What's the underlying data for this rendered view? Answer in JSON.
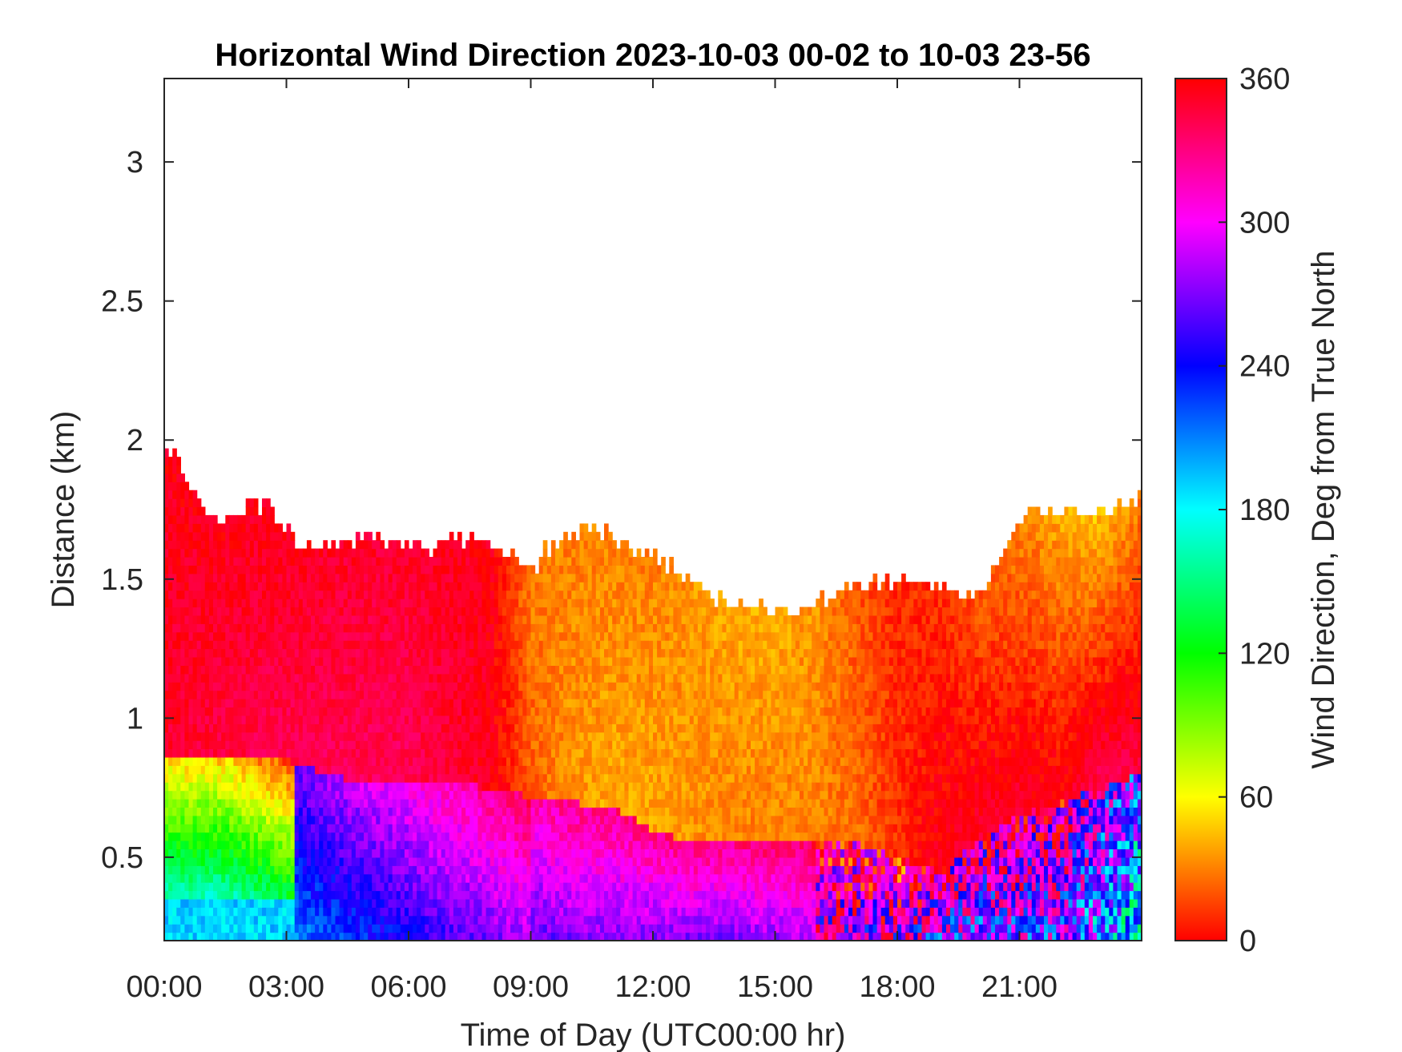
{
  "chart_data": {
    "type": "heatmap",
    "title": "Horizontal Wind Direction 2023-10-03 00-02 to 10-03 23-56",
    "xlabel": "Time of Day (UTC00:00 hr)",
    "ylabel": "Distance (km)",
    "colorbar_label": "Wind Direction, Deg from True North",
    "x_unit": "hours",
    "xlim": [
      0,
      24
    ],
    "ylim": [
      0.2,
      3.3
    ],
    "x_ticks": [
      {
        "value": 0,
        "label": "00:00"
      },
      {
        "value": 3,
        "label": "03:00"
      },
      {
        "value": 6,
        "label": "06:00"
      },
      {
        "value": 9,
        "label": "09:00"
      },
      {
        "value": 12,
        "label": "12:00"
      },
      {
        "value": 15,
        "label": "15:00"
      },
      {
        "value": 18,
        "label": "18:00"
      },
      {
        "value": 21,
        "label": "21:00"
      }
    ],
    "y_ticks": [
      {
        "value": 0.5,
        "label": "0.5"
      },
      {
        "value": 1,
        "label": "1"
      },
      {
        "value": 1.5,
        "label": "1.5"
      },
      {
        "value": 2,
        "label": "2"
      },
      {
        "value": 2.5,
        "label": "2.5"
      },
      {
        "value": 3,
        "label": "3"
      }
    ],
    "colorbar": {
      "min": 0,
      "max": 360,
      "ticks": [
        {
          "value": 0,
          "label": "0"
        },
        {
          "value": 60,
          "label": "60"
        },
        {
          "value": 120,
          "label": "120"
        },
        {
          "value": 180,
          "label": "180"
        },
        {
          "value": 240,
          "label": "240"
        },
        {
          "value": 300,
          "label": "300"
        },
        {
          "value": 360,
          "label": "360"
        }
      ],
      "colormap": "hsv"
    },
    "data_top_km": {
      "t": [
        0,
        0.5,
        1.2,
        1.8,
        2.5,
        3.2,
        3.5,
        5.0,
        6.5,
        7.5,
        8.5,
        9.0,
        9.5,
        10.5,
        11.5,
        12.5,
        13.5,
        14.5,
        15.5,
        16.5,
        17.5,
        19.0,
        20.0,
        21.0,
        22.0,
        23.0,
        24.0
      ],
      "km": [
        1.95,
        1.88,
        1.68,
        1.74,
        1.75,
        1.62,
        1.6,
        1.63,
        1.6,
        1.64,
        1.58,
        1.5,
        1.62,
        1.68,
        1.6,
        1.52,
        1.42,
        1.38,
        1.35,
        1.45,
        1.48,
        1.45,
        1.42,
        1.72,
        1.73,
        1.72,
        1.78
      ]
    },
    "layers": [
      {
        "t": [
          0,
          3,
          4.5,
          6,
          8,
          9,
          10,
          11,
          12,
          13,
          14,
          15,
          16,
          17,
          18,
          19,
          20,
          21,
          22,
          23,
          24
        ],
        "km_lower": [
          0.85,
          0.85,
          0.78,
          0.78,
          0.75,
          0.72,
          0.7,
          0.68,
          0.6,
          0.55,
          0.55,
          0.55,
          0.55,
          0.55,
          0.5,
          0.45,
          0.55,
          0.65,
          0.7,
          0.75,
          0.8
        ],
        "deg": [
          5,
          5,
          5,
          5,
          5,
          5,
          5,
          5,
          5,
          5,
          5,
          5,
          5,
          5,
          5,
          5,
          5,
          5,
          5,
          5,
          5
        ]
      },
      {
        "t": [
          0,
          3,
          4.5,
          6,
          8,
          9,
          10,
          11,
          12,
          13,
          14,
          15,
          16,
          17,
          18,
          19,
          20,
          21,
          22,
          23,
          24
        ],
        "deg_lower": [
          45,
          45,
          300,
          300,
          290,
          300,
          310,
          310,
          310,
          310,
          310,
          315,
          320,
          320,
          330,
          300,
          290,
          300,
          300,
          260,
          220
        ],
        "deg_mid": [
          350,
          340,
          340,
          340,
          355,
          20,
          35,
          40,
          40,
          35,
          30,
          30,
          30,
          25,
          10,
          355,
          350,
          350,
          355,
          340,
          345
        ],
        "deg_upper": [
          355,
          355,
          350,
          350,
          355,
          30,
          30,
          30,
          30,
          35,
          40,
          40,
          35,
          20,
          10,
          10,
          20,
          30,
          40,
          45,
          30
        ]
      }
    ]
  }
}
